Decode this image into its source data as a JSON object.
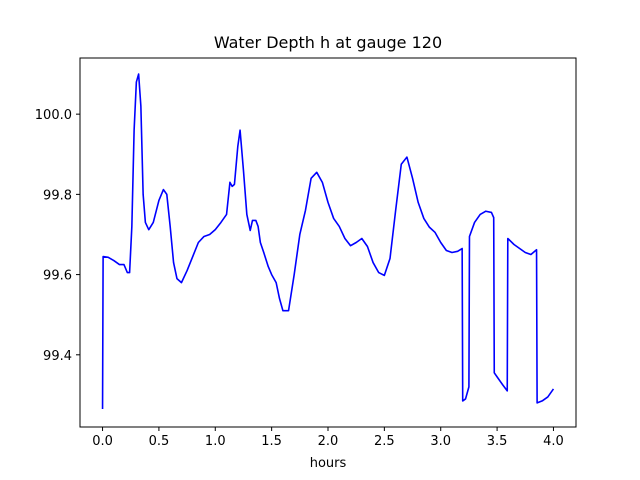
{
  "chart_data": {
    "type": "line",
    "title": "Water Depth h at gauge 120",
    "xlabel": "hours",
    "ylabel": "",
    "xlim": [
      -0.2,
      4.2
    ],
    "ylim": [
      99.22,
      100.14
    ],
    "xticks": [
      0.0,
      0.5,
      1.0,
      1.5,
      2.0,
      2.5,
      3.0,
      3.5,
      4.0
    ],
    "xtick_labels": [
      "0.0",
      "0.5",
      "1.0",
      "1.5",
      "2.0",
      "2.5",
      "3.0",
      "3.5",
      "4.0"
    ],
    "yticks": [
      99.4,
      99.6,
      99.8,
      100.0
    ],
    "ytick_labels": [
      "99.4",
      "99.6",
      "99.8",
      "100.0"
    ],
    "grid": false,
    "series": [
      {
        "color": "#0000ff",
        "points": [
          [
            0.0,
            99.265
          ],
          [
            0.005,
            99.645
          ],
          [
            0.05,
            99.643
          ],
          [
            0.1,
            99.635
          ],
          [
            0.15,
            99.625
          ],
          [
            0.19,
            99.625
          ],
          [
            0.22,
            99.605
          ],
          [
            0.24,
            99.605
          ],
          [
            0.26,
            99.72
          ],
          [
            0.28,
            99.96
          ],
          [
            0.3,
            100.08
          ],
          [
            0.32,
            100.1
          ],
          [
            0.34,
            100.02
          ],
          [
            0.36,
            99.8
          ],
          [
            0.38,
            99.73
          ],
          [
            0.41,
            99.712
          ],
          [
            0.45,
            99.73
          ],
          [
            0.5,
            99.785
          ],
          [
            0.54,
            99.812
          ],
          [
            0.57,
            99.8
          ],
          [
            0.6,
            99.72
          ],
          [
            0.63,
            99.63
          ],
          [
            0.66,
            99.59
          ],
          [
            0.7,
            99.58
          ],
          [
            0.75,
            99.61
          ],
          [
            0.8,
            99.645
          ],
          [
            0.85,
            99.68
          ],
          [
            0.9,
            99.695
          ],
          [
            0.95,
            99.7
          ],
          [
            1.0,
            99.712
          ],
          [
            1.05,
            99.73
          ],
          [
            1.1,
            99.75
          ],
          [
            1.13,
            99.83
          ],
          [
            1.15,
            99.82
          ],
          [
            1.17,
            99.825
          ],
          [
            1.2,
            99.92
          ],
          [
            1.22,
            99.96
          ],
          [
            1.25,
            99.86
          ],
          [
            1.28,
            99.75
          ],
          [
            1.31,
            99.71
          ],
          [
            1.33,
            99.735
          ],
          [
            1.36,
            99.735
          ],
          [
            1.38,
            99.72
          ],
          [
            1.4,
            99.68
          ],
          [
            1.43,
            99.655
          ],
          [
            1.47,
            99.62
          ],
          [
            1.5,
            99.6
          ],
          [
            1.54,
            99.58
          ],
          [
            1.57,
            99.54
          ],
          [
            1.6,
            99.51
          ],
          [
            1.65,
            99.51
          ],
          [
            1.7,
            99.6
          ],
          [
            1.75,
            99.7
          ],
          [
            1.8,
            99.76
          ],
          [
            1.85,
            99.84
          ],
          [
            1.9,
            99.855
          ],
          [
            1.95,
            99.83
          ],
          [
            2.0,
            99.78
          ],
          [
            2.05,
            99.74
          ],
          [
            2.1,
            99.72
          ],
          [
            2.15,
            99.69
          ],
          [
            2.2,
            99.672
          ],
          [
            2.25,
            99.68
          ],
          [
            2.3,
            99.69
          ],
          [
            2.35,
            99.67
          ],
          [
            2.4,
            99.63
          ],
          [
            2.45,
            99.605
          ],
          [
            2.5,
            99.598
          ],
          [
            2.55,
            99.64
          ],
          [
            2.6,
            99.76
          ],
          [
            2.65,
            99.875
          ],
          [
            2.7,
            99.893
          ],
          [
            2.75,
            99.84
          ],
          [
            2.8,
            99.78
          ],
          [
            2.85,
            99.74
          ],
          [
            2.9,
            99.718
          ],
          [
            2.95,
            99.705
          ],
          [
            3.0,
            99.68
          ],
          [
            3.05,
            99.66
          ],
          [
            3.1,
            99.655
          ],
          [
            3.15,
            99.658
          ],
          [
            3.19,
            99.665
          ],
          [
            3.195,
            99.285
          ],
          [
            3.22,
            99.29
          ],
          [
            3.25,
            99.32
          ],
          [
            3.255,
            99.695
          ],
          [
            3.3,
            99.73
          ],
          [
            3.35,
            99.75
          ],
          [
            3.4,
            99.758
          ],
          [
            3.45,
            99.755
          ],
          [
            3.47,
            99.742
          ],
          [
            3.475,
            99.355
          ],
          [
            3.5,
            99.345
          ],
          [
            3.55,
            99.325
          ],
          [
            3.59,
            99.31
          ],
          [
            3.595,
            99.69
          ],
          [
            3.65,
            99.675
          ],
          [
            3.7,
            99.665
          ],
          [
            3.75,
            99.655
          ],
          [
            3.8,
            99.65
          ],
          [
            3.85,
            99.662
          ],
          [
            3.855,
            99.28
          ],
          [
            3.9,
            99.285
          ],
          [
            3.95,
            99.295
          ],
          [
            4.0,
            99.315
          ]
        ]
      }
    ]
  }
}
